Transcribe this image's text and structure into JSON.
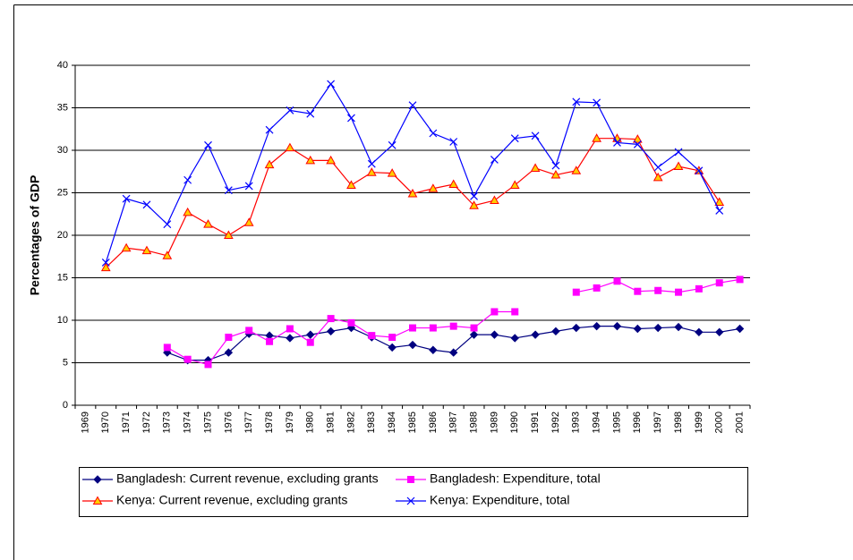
{
  "chart_data": {
    "type": "line",
    "y_label": "Percentages of GDP",
    "categories": [
      "1969",
      "1970",
      "1971",
      "1972",
      "1973",
      "1974",
      "1975",
      "1976",
      "1977",
      "1978",
      "1979",
      "1980",
      "1981",
      "1982",
      "1983",
      "1984",
      "1985",
      "1986",
      "1987",
      "1988",
      "1989",
      "1990",
      "1991",
      "1992",
      "1993",
      "1994",
      "1995",
      "1996",
      "1997",
      "1998",
      "1999",
      "2000",
      "2001"
    ],
    "ylim": [
      0,
      40
    ],
    "yticks": [
      0,
      5,
      10,
      15,
      20,
      25,
      30,
      35,
      40
    ],
    "grid": true,
    "legend": "bottom",
    "series": [
      {
        "name": "Bangladesh: Current revenue, excluding grants",
        "color": "#000080",
        "marker": "diamond",
        "marker_fill": "#000080",
        "values": [
          null,
          null,
          null,
          null,
          6.2,
          5.3,
          5.3,
          6.2,
          8.4,
          8.2,
          7.9,
          8.3,
          8.7,
          9.1,
          8.0,
          6.8,
          7.1,
          6.5,
          6.2,
          8.3,
          8.3,
          7.9,
          8.3,
          8.7,
          9.1,
          9.3,
          9.3,
          9.0,
          9.1,
          9.2,
          8.6,
          8.6,
          9.0
        ]
      },
      {
        "name": "Bangladesh: Expenditure, total",
        "color": "#ff00ff",
        "marker": "square",
        "marker_fill": "#ff00ff",
        "values": [
          null,
          null,
          null,
          null,
          6.8,
          5.4,
          4.8,
          8.0,
          8.8,
          7.5,
          9.0,
          7.4,
          10.2,
          9.7,
          8.2,
          8.0,
          9.1,
          9.1,
          9.3,
          9.1,
          11.0,
          11.0,
          null,
          null,
          13.3,
          13.8,
          14.6,
          13.4,
          13.5,
          13.3,
          13.7,
          14.4,
          14.8
        ]
      },
      {
        "name": "Kenya: Current revenue, excluding grants",
        "color": "#ff0000",
        "marker": "triangle",
        "marker_fill": "#ffcc00",
        "values": [
          null,
          16.2,
          18.5,
          18.2,
          17.6,
          22.7,
          21.3,
          20.0,
          21.5,
          28.3,
          30.3,
          28.8,
          28.8,
          25.9,
          27.4,
          27.3,
          24.9,
          25.5,
          26.0,
          23.5,
          24.1,
          25.9,
          27.9,
          27.1,
          27.6,
          31.4,
          31.4,
          31.3,
          26.8,
          28.1,
          27.6,
          23.9,
          null
        ]
      },
      {
        "name": "Kenya: Expenditure, total",
        "color": "#0000ff",
        "marker": "x",
        "marker_fill": "none",
        "values": [
          null,
          16.8,
          24.3,
          23.6,
          21.3,
          26.5,
          30.6,
          25.3,
          25.8,
          32.4,
          34.7,
          34.3,
          37.8,
          33.8,
          28.4,
          30.6,
          35.3,
          32.0,
          31.0,
          24.6,
          28.9,
          31.4,
          31.7,
          28.2,
          35.7,
          35.6,
          30.9,
          30.7,
          28.0,
          29.8,
          27.6,
          22.9,
          null
        ]
      }
    ]
  }
}
